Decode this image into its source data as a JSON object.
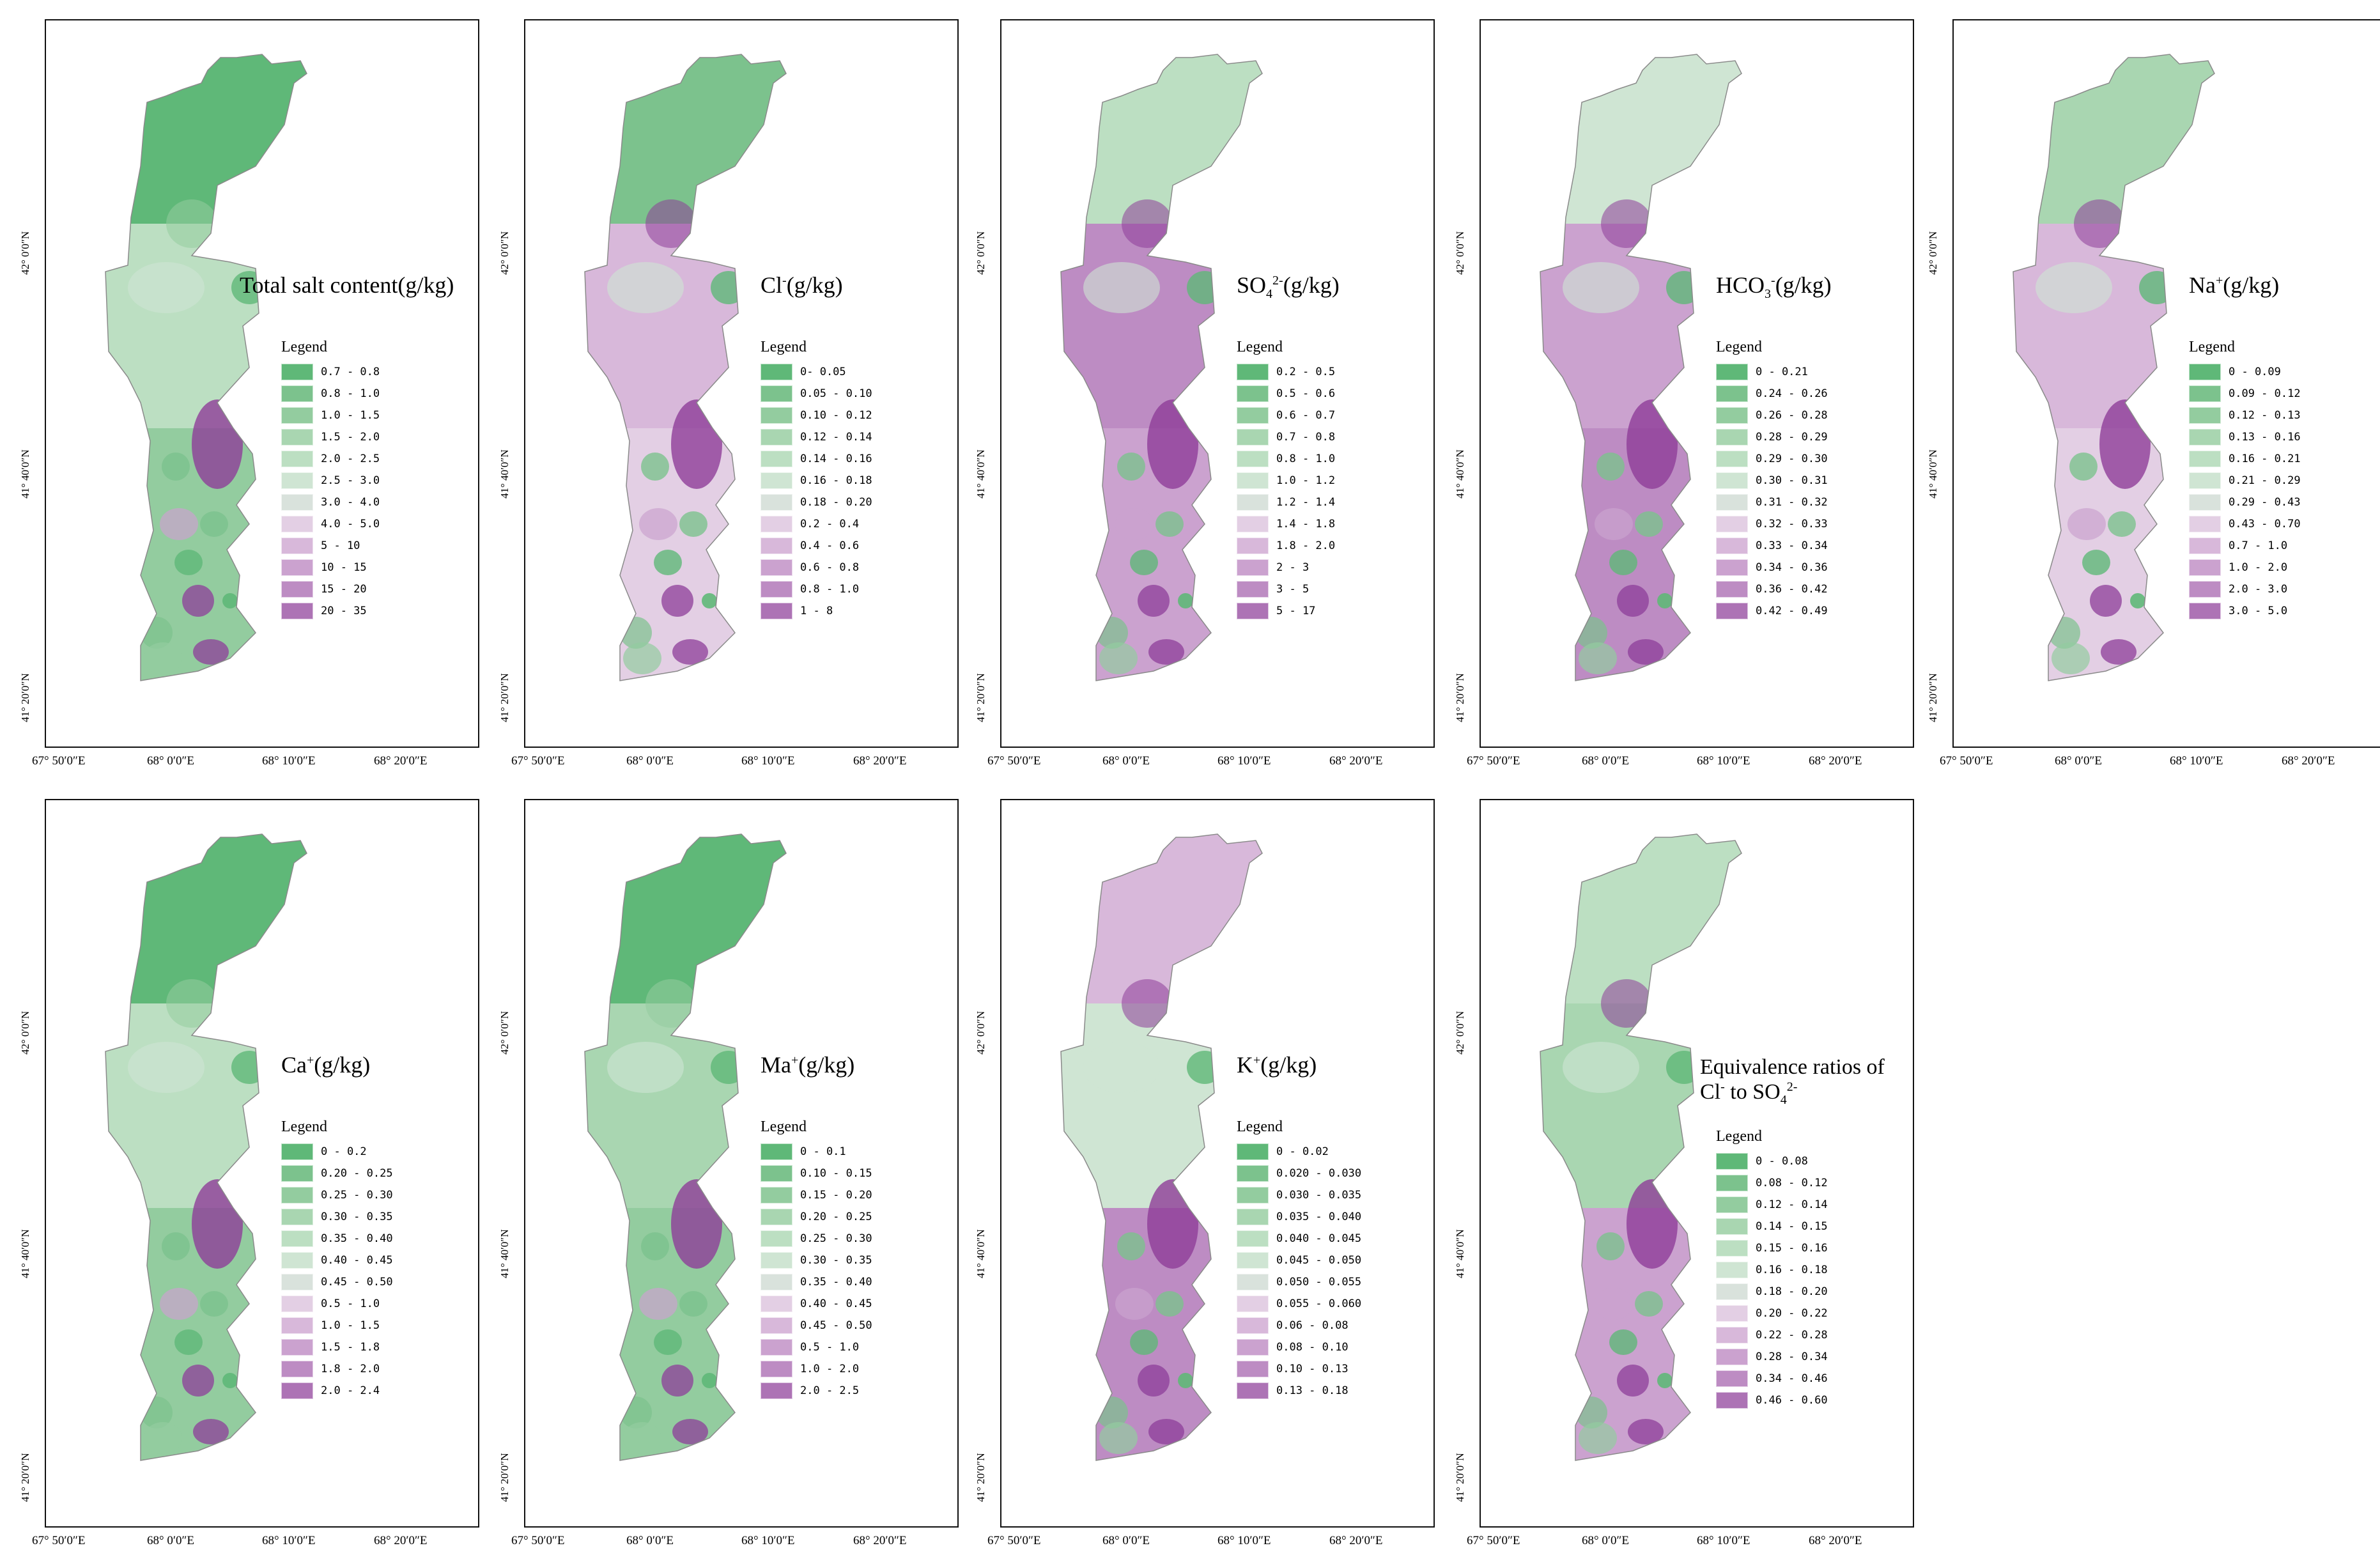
{
  "colors": {
    "green": [
      "#5fb878",
      "#7cc28d",
      "#93cc9f",
      "#a9d6b1",
      "#bcdfc2",
      "#cfe5d3"
    ],
    "neutral": "#d9e2dc",
    "purple": [
      "#e3cfe4",
      "#d8b8da",
      "#cba2cf",
      "#bd8cc3",
      "#ad73b5",
      "#8e3d99"
    ],
    "frame": "#111111"
  },
  "axes": {
    "y_ticks": [
      "42° 0′0″N",
      "41° 40′0″N",
      "41° 20′0″N"
    ],
    "x_ticks": [
      "67° 50′0″E",
      "68° 0′0″E",
      "68° 10′0″E",
      "68° 20′0″E"
    ]
  },
  "panels": [
    {
      "id": "total-salt",
      "title_main": "Total salt content(g/kg)",
      "title_sup": "",
      "title_tail": "",
      "legend_title": "Legend",
      "legend": [
        "0.7 - 0.8",
        "0.8 - 1.0",
        "1.0 - 1.5",
        "1.5 - 2.0",
        "2.0 - 2.5",
        "2.5 - 3.0",
        "3.0 - 4.0",
        "4.0 - 5.0",
        "5 - 10",
        "10 - 15",
        "15 - 20",
        "20 - 35"
      ],
      "north": "g0",
      "mid": "g4",
      "south": "g2",
      "hot": "p5"
    },
    {
      "id": "cl",
      "title_main": "Cl",
      "title_sup": "-",
      "title_tail": "(g/kg)",
      "legend_title": "Legend",
      "legend": [
        "0- 0.05",
        "0.05 - 0.10",
        "0.10 - 0.12",
        "0.12 - 0.14",
        "0.14 - 0.16",
        "0.16 - 0.18",
        "0.18 - 0.20",
        "0.2 - 0.4",
        "0.4 - 0.6",
        "0.6 - 0.8",
        "0.8 - 1.0",
        "1 - 8"
      ],
      "north": "g1",
      "mid": "p1",
      "south": "p0",
      "hot": "p5"
    },
    {
      "id": "so4",
      "title_main": "SO",
      "title_sub": "4",
      "title_sup": "2-",
      "title_tail": "(g/kg)",
      "legend_title": "Legend",
      "legend": [
        "0.2 - 0.5",
        "0.5 - 0.6",
        "0.6 - 0.7",
        "0.7 - 0.8",
        "0.8 - 1.0",
        "1.0 - 1.2",
        "1.2 - 1.4",
        "1.4 - 1.8",
        "1.8 - 2.0",
        "2 - 3",
        "3 - 5",
        "5 - 17"
      ],
      "north": "g4",
      "mid": "p3",
      "south": "p2",
      "hot": "p5"
    },
    {
      "id": "hco3",
      "title_main": "HCO",
      "title_sub": "3",
      "title_sup": "-",
      "title_tail": "(g/kg)",
      "legend_title": "Legend",
      "legend": [
        "0 - 0.21",
        "0.24 - 0.26",
        "0.26 - 0.28",
        "0.28 - 0.29",
        "0.29 - 0.30",
        "0.30 - 0.31",
        "0.31 - 0.32",
        "0.32 - 0.33",
        "0.33 - 0.34",
        "0.34 - 0.36",
        "0.36 - 0.42",
        "0.42 - 0.49"
      ],
      "north": "g5",
      "mid": "p2",
      "south": "p3",
      "hot": "p5"
    },
    {
      "id": "na",
      "title_main": "Na",
      "title_sup": "+",
      "title_tail": "(g/kg)",
      "legend_title": "Legend",
      "legend": [
        "0 - 0.09",
        "0.09 - 0.12",
        "0.12 - 0.13",
        "0.13 - 0.16",
        "0.16 - 0.21",
        "0.21 - 0.29",
        "0.29 - 0.43",
        "0.43 - 0.70",
        "0.7 - 1.0",
        "1.0 - 2.0",
        "2.0 - 3.0",
        "3.0 - 5.0"
      ],
      "north": "g3",
      "mid": "p1",
      "south": "p0",
      "hot": "p5"
    },
    {
      "id": "ca",
      "title_main": "Ca",
      "title_sup": "+",
      "title_tail": "(g/kg)",
      "legend_title": "Legend",
      "legend": [
        "0 - 0.2",
        "0.20 - 0.25",
        "0.25 - 0.30",
        "0.30 - 0.35",
        "0.35 - 0.40",
        "0.40 - 0.45",
        "0.45 - 0.50",
        "0.5 - 1.0",
        "1.0 - 1.5",
        "1.5 - 1.8",
        "1.8 - 2.0",
        "2.0 - 2.4"
      ],
      "north": "g0",
      "mid": "g4",
      "south": "g2",
      "hot": "p5"
    },
    {
      "id": "ma",
      "title_main": "Ma",
      "title_sup": "+",
      "title_tail": "(g/kg)",
      "legend_title": "Legend",
      "legend": [
        "0 - 0.1",
        "0.10 - 0.15",
        "0.15 - 0.20",
        "0.20 - 0.25",
        "0.25 - 0.30",
        "0.30 - 0.35",
        "0.35 - 0.40",
        "0.40 - 0.45",
        "0.45 - 0.50",
        "0.5 - 1.0",
        "1.0 - 2.0",
        "2.0 - 2.5"
      ],
      "north": "g0",
      "mid": "g3",
      "south": "g2",
      "hot": "p5"
    },
    {
      "id": "k",
      "title_main": "K",
      "title_sup": "+",
      "title_tail": "(g/kg)",
      "legend_title": "Legend",
      "legend": [
        "0 - 0.02",
        "0.020 - 0.030",
        "0.030 - 0.035",
        "0.035 - 0.040",
        "0.040 - 0.045",
        "0.045 - 0.050",
        "0.050 - 0.055",
        "0.055 - 0.060",
        "0.06 - 0.08",
        "0.08 - 0.10",
        "0.10 - 0.13",
        "0.13 - 0.18"
      ],
      "north": "p1",
      "mid": "g5",
      "south": "p3",
      "hot": "p5"
    },
    {
      "id": "ratio",
      "title_main": "Equivalence ratios of",
      "title_line2a": "Cl",
      "title_line2sup": "-",
      "title_line2b": " to  SO",
      "title_line2sub": "4",
      "title_line2sup2": "2-",
      "legend_title": "Legend",
      "legend": [
        "0 - 0.08",
        "0.08 - 0.12",
        "0.12 - 0.14",
        "0.14 - 0.15",
        "0.15 - 0.16",
        "0.16 - 0.18",
        "0.18 - 0.20",
        "0.20 - 0.22",
        "0.22 - 0.28",
        "0.28 - 0.34",
        "0.34 - 0.46",
        "0.46 - 0.60"
      ],
      "north": "g4",
      "mid": "g3",
      "south": "p2",
      "hot": "p5"
    }
  ]
}
